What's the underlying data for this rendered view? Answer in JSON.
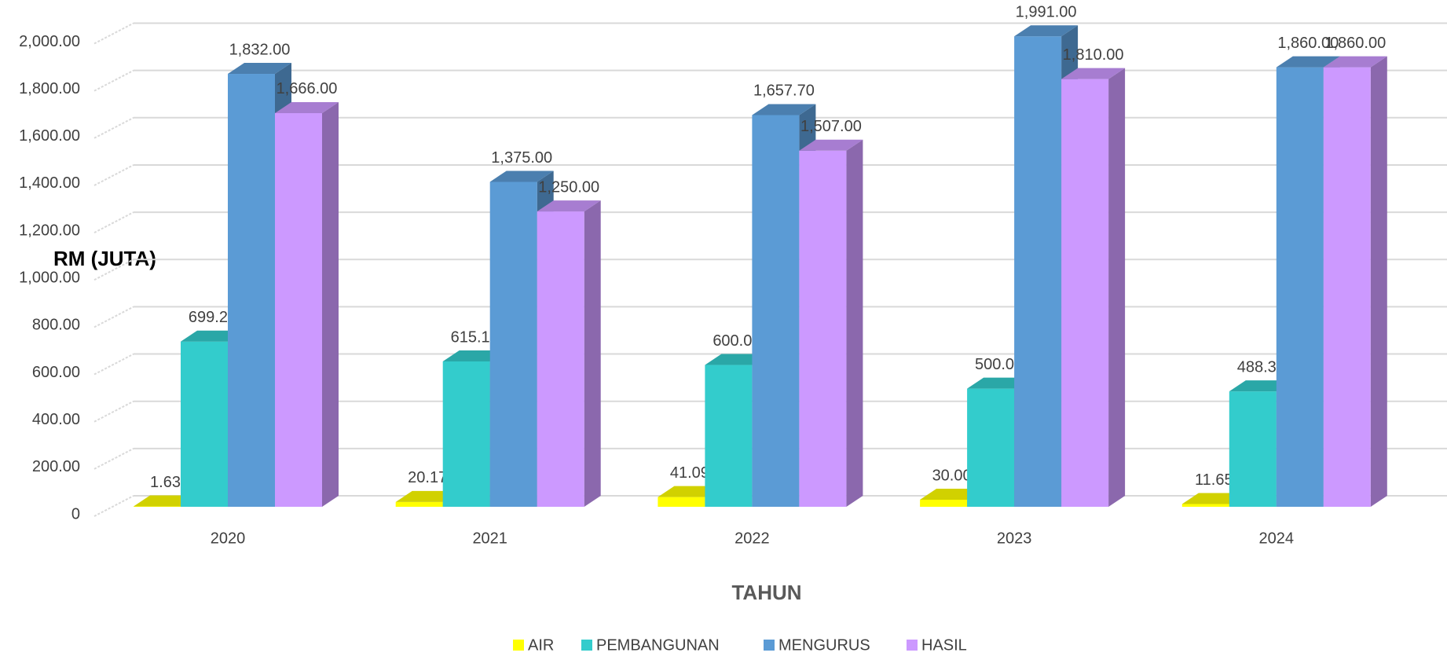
{
  "chart_data": {
    "type": "bar3d",
    "y_label": "RM (JUTA)",
    "x_label": "TAHUN",
    "categories": [
      "2020",
      "2021",
      "2022",
      "2023",
      "2024"
    ],
    "series": [
      {
        "name": "AIR",
        "color": "#ffff00",
        "values": [
          1.63,
          20.17,
          41.09,
          30,
          11.65
        ],
        "value_labels": [
          "1.63",
          "20.17",
          "41.09",
          "30.00",
          "11.65"
        ]
      },
      {
        "name": "PEMBANGUNAN",
        "color": "#33cccc",
        "values": [
          699.29,
          615.15,
          600,
          500,
          488.35
        ],
        "value_labels": [
          "699.29",
          "615.15",
          "600.00",
          "500.00",
          "488.35"
        ]
      },
      {
        "name": "MENGURUS",
        "color": "#5b9bd5",
        "values": [
          1832,
          1375,
          1657.7,
          1991,
          1860
        ],
        "value_labels": [
          "1,832.00",
          "1,375.00",
          "1,657.70",
          "1,991.00",
          "1,860.00"
        ]
      },
      {
        "name": "HASIL",
        "color": "#cc99ff",
        "values": [
          1666,
          1250,
          1507,
          1810,
          1860
        ],
        "value_labels": [
          "1,666.00",
          "1,250.00",
          "1,507.00",
          "1,810.00",
          "1,860.00"
        ]
      }
    ],
    "ylim": [
      0,
      2000
    ],
    "yticks": [
      0,
      {
        "value": 200,
        "label": "200.00"
      },
      {
        "value": 400,
        "label": "400.00"
      },
      {
        "value": 600,
        "label": "600.00"
      },
      {
        "value": 800,
        "label": "800.00"
      },
      {
        "value": 1000,
        "label": "1,000.00"
      },
      {
        "value": 1200,
        "label": "1,200.00"
      },
      {
        "value": 1400,
        "label": "1,400.00"
      },
      {
        "value": 1600,
        "label": "1,600.00"
      },
      {
        "value": 1800,
        "label": "1,800.00"
      },
      {
        "value": 2000,
        "label": "2,000.00"
      }
    ],
    "grid": true,
    "legend": "bottom"
  }
}
